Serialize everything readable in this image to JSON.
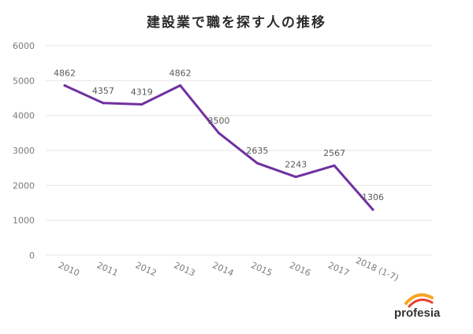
{
  "chart_data": {
    "type": "line",
    "title": "建設業で職を探す人の推移",
    "categories": [
      "2010",
      "2011",
      "2012",
      "2013",
      "2014",
      "2015",
      "2016",
      "2017",
      "2018 (1-7)"
    ],
    "series": [
      {
        "values": [
          4862,
          4357,
          4319,
          4862,
          3500,
          2635,
          2243,
          2567,
          1306
        ]
      }
    ],
    "data_labels": [
      "4862",
      "4357",
      "4319",
      "4862",
      "3500",
      "2635",
      "2243",
      "2567",
      "1306"
    ],
    "y_ticks": [
      "0",
      "1000",
      "2000",
      "3000",
      "4000",
      "5000",
      "6000"
    ],
    "ylim": [
      0,
      6000
    ],
    "grid": true,
    "line_color": "#7030a0",
    "grid_color": "#e6e6e6",
    "legend": "none"
  },
  "logo": {
    "text": "profesia",
    "arc_colors": [
      "#f5a623",
      "#e8402f"
    ]
  }
}
